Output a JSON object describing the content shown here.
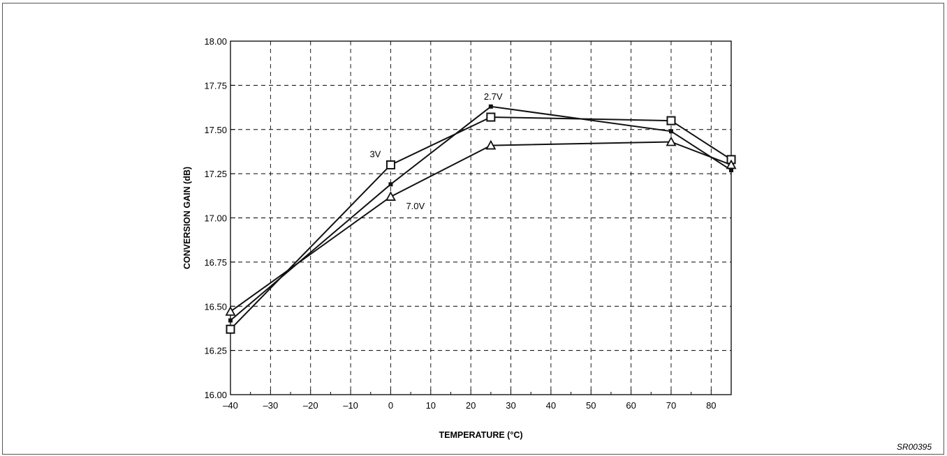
{
  "figure_code": "SR00395",
  "chart_data": {
    "type": "line",
    "xlabel": "TEMPERATURE (°C)",
    "ylabel": "CONVERSION GAIN (dB)",
    "xlim": [
      -40,
      85
    ],
    "ylim": [
      16.0,
      18.0
    ],
    "xticks": [
      -40,
      -30,
      -20,
      -10,
      0,
      10,
      20,
      30,
      40,
      50,
      60,
      70,
      80
    ],
    "xtick_labels": [
      "–40",
      "–30",
      "–20",
      "–10",
      "0",
      "10",
      "20",
      "30",
      "40",
      "50",
      "60",
      "70",
      "80"
    ],
    "yticks": [
      16.0,
      16.25,
      16.5,
      16.75,
      17.0,
      17.25,
      17.5,
      17.75,
      18.0
    ],
    "ytick_labels": [
      "16.00",
      "16.25",
      "16.50",
      "16.75",
      "17.00",
      "17.25",
      "17.50",
      "17.75",
      "18.00"
    ],
    "grid": true,
    "series": [
      {
        "name": "2.7V",
        "marker": "filled-square",
        "x": [
          -40,
          0,
          25,
          70,
          85
        ],
        "y": [
          16.42,
          17.19,
          17.63,
          17.49,
          17.27
        ]
      },
      {
        "name": "3V",
        "marker": "open-square",
        "x": [
          -40,
          0,
          25,
          70,
          85
        ],
        "y": [
          16.37,
          17.3,
          17.57,
          17.55,
          17.33
        ]
      },
      {
        "name": "7.0V",
        "marker": "open-triangle",
        "x": [
          -40,
          0,
          25,
          70,
          85
        ],
        "y": [
          16.47,
          17.12,
          17.41,
          17.43,
          17.3
        ]
      }
    ]
  }
}
